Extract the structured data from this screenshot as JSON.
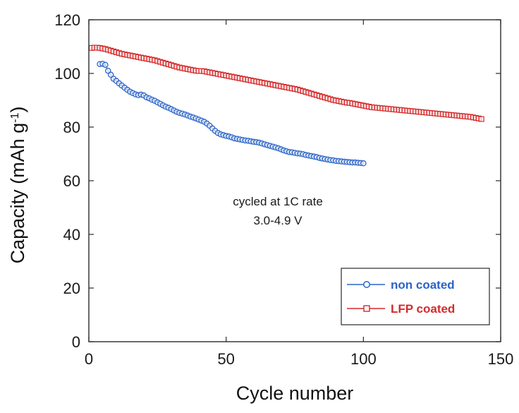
{
  "chart_data": {
    "type": "line",
    "xlabel": "Cycle number",
    "ylabel": "Capacity (mAh g",
    "ylabel_sup": "-1",
    "ylabel_suffix": ")",
    "xlim": [
      0,
      150
    ],
    "ylim": [
      0,
      120
    ],
    "xticks": [
      0,
      50,
      100,
      150
    ],
    "yticks": [
      0,
      20,
      40,
      60,
      80,
      100,
      120
    ],
    "grid": false,
    "legend_position": "bottom-right",
    "annotation": [
      "cycled at 1C rate",
      "3.0-4.9 V"
    ],
    "series": [
      {
        "name": "non coated",
        "color": "#2a64c8",
        "marker": "circle",
        "x": [
          4,
          5,
          6,
          7,
          8,
          9,
          10,
          11,
          12,
          13,
          14,
          15,
          16,
          17,
          18,
          19,
          20,
          21,
          22,
          23,
          24,
          25,
          26,
          27,
          28,
          29,
          30,
          31,
          32,
          33,
          34,
          35,
          36,
          37,
          38,
          39,
          40,
          41,
          42,
          43,
          44,
          45,
          46,
          47,
          48,
          49,
          50,
          51,
          52,
          53,
          54,
          55,
          56,
          57,
          58,
          59,
          60,
          61,
          62,
          63,
          64,
          65,
          66,
          67,
          68,
          69,
          70,
          71,
          72,
          73,
          74,
          75,
          76,
          77,
          78,
          79,
          80,
          81,
          82,
          83,
          84,
          85,
          86,
          87,
          88,
          89,
          90,
          91,
          92,
          93,
          94,
          95,
          96,
          97,
          98,
          99,
          100
        ],
        "y": [
          103.5,
          103.6,
          103.2,
          101.0,
          99.5,
          98.0,
          97.2,
          96.3,
          95.5,
          94.7,
          93.9,
          93.2,
          92.7,
          92.2,
          91.9,
          92.1,
          91.8,
          91.1,
          90.7,
          90.2,
          89.8,
          89.2,
          88.7,
          88.1,
          87.6,
          87.2,
          86.7,
          86.2,
          85.7,
          85.3,
          85.0,
          84.7,
          84.3,
          83.9,
          83.6,
          83.2,
          82.8,
          82.4,
          82.0,
          81.3,
          80.5,
          79.5,
          78.6,
          77.8,
          77.3,
          77.0,
          76.7,
          76.5,
          76.2,
          75.8,
          75.6,
          75.4,
          75.2,
          75.0,
          74.9,
          74.7,
          74.5,
          74.4,
          74.2,
          73.9,
          73.6,
          73.3,
          73.0,
          72.7,
          72.4,
          72.1,
          71.7,
          71.3,
          71.0,
          70.7,
          70.6,
          70.4,
          70.2,
          70.1,
          69.9,
          69.6,
          69.4,
          69.2,
          69.0,
          68.8,
          68.5,
          68.3,
          68.1,
          67.9,
          67.7,
          67.6,
          67.4,
          67.3,
          67.2,
          67.1,
          67.0,
          66.9,
          66.8,
          66.8,
          66.7,
          66.6,
          66.5
        ]
      },
      {
        "name": "LFP coated",
        "color": "#d42a2a",
        "marker": "square",
        "x": [
          1,
          2,
          3,
          4,
          5,
          6,
          7,
          8,
          9,
          10,
          11,
          12,
          13,
          14,
          15,
          16,
          17,
          18,
          19,
          20,
          21,
          22,
          23,
          24,
          25,
          26,
          27,
          28,
          29,
          30,
          31,
          32,
          33,
          34,
          35,
          36,
          37,
          38,
          39,
          40,
          41,
          42,
          43,
          44,
          45,
          46,
          47,
          48,
          49,
          50,
          51,
          52,
          53,
          54,
          55,
          56,
          57,
          58,
          59,
          60,
          61,
          62,
          63,
          64,
          65,
          66,
          67,
          68,
          69,
          70,
          71,
          72,
          73,
          74,
          75,
          76,
          77,
          78,
          79,
          80,
          81,
          82,
          83,
          84,
          85,
          86,
          87,
          88,
          89,
          90,
          91,
          92,
          93,
          94,
          95,
          96,
          97,
          98,
          99,
          100,
          101,
          102,
          103,
          104,
          105,
          106,
          107,
          108,
          109,
          110,
          111,
          112,
          113,
          114,
          115,
          116,
          117,
          118,
          119,
          120,
          121,
          122,
          123,
          124,
          125,
          126,
          127,
          128,
          129,
          130,
          131,
          132,
          133,
          134,
          135,
          136,
          137,
          138,
          139,
          140,
          141,
          142,
          143
        ],
        "y": [
          109.5,
          109.6,
          109.6,
          109.5,
          109.3,
          109.1,
          108.8,
          108.5,
          108.2,
          107.9,
          107.6,
          107.3,
          107.1,
          106.9,
          106.7,
          106.5,
          106.3,
          106.1,
          105.9,
          105.7,
          105.5,
          105.3,
          105.1,
          104.9,
          104.6,
          104.3,
          104.0,
          103.7,
          103.4,
          103.1,
          102.8,
          102.5,
          102.2,
          102.0,
          101.8,
          101.6,
          101.4,
          101.2,
          101.0,
          100.9,
          100.9,
          100.8,
          100.6,
          100.4,
          100.2,
          100.0,
          99.8,
          99.6,
          99.4,
          99.2,
          99.0,
          98.8,
          98.6,
          98.4,
          98.2,
          98.0,
          97.8,
          97.6,
          97.4,
          97.2,
          97.0,
          96.8,
          96.6,
          96.4,
          96.2,
          96.0,
          95.8,
          95.6,
          95.4,
          95.2,
          95.0,
          94.8,
          94.6,
          94.4,
          94.2,
          94.0,
          93.7,
          93.4,
          93.1,
          92.8,
          92.5,
          92.2,
          91.9,
          91.6,
          91.3,
          91.0,
          90.7,
          90.4,
          90.1,
          89.9,
          89.7,
          89.5,
          89.3,
          89.1,
          89.0,
          88.8,
          88.6,
          88.4,
          88.2,
          88.0,
          87.8,
          87.6,
          87.4,
          87.3,
          87.2,
          87.1,
          87.0,
          86.9,
          86.8,
          86.7,
          86.6,
          86.5,
          86.4,
          86.3,
          86.2,
          86.1,
          86.0,
          85.9,
          85.8,
          85.7,
          85.6,
          85.5,
          85.4,
          85.3,
          85.2,
          85.1,
          85.0,
          84.9,
          84.8,
          84.7,
          84.6,
          84.5,
          84.4,
          84.3,
          84.2,
          84.1,
          84.0,
          83.9,
          83.8,
          83.6,
          83.4,
          83.2,
          83.0
        ]
      }
    ]
  }
}
